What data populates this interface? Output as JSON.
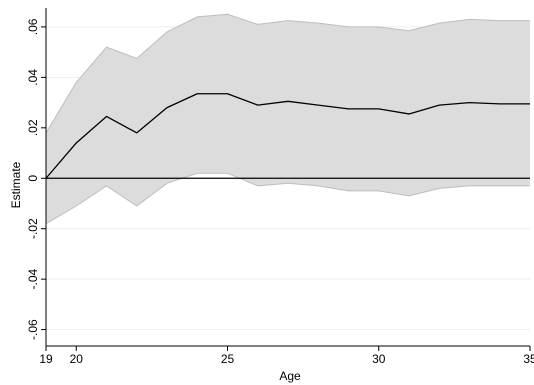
{
  "chart_data": {
    "type": "area",
    "title": "",
    "xlabel": "Age",
    "ylabel": "Estimate",
    "x": [
      19,
      20,
      21,
      22,
      23,
      24,
      25,
      26,
      27,
      28,
      29,
      30,
      31,
      32,
      33,
      34,
      35
    ],
    "series": [
      {
        "role": "estimate",
        "values": [
          0.0,
          0.014,
          0.0245,
          0.018,
          0.028,
          0.0335,
          0.0335,
          0.029,
          0.0305,
          0.029,
          0.0275,
          0.0275,
          0.0255,
          0.029,
          0.03,
          0.0295,
          0.0295
        ]
      },
      {
        "role": "ci_upper",
        "values": [
          0.018,
          0.038,
          0.052,
          0.0475,
          0.058,
          0.064,
          0.065,
          0.061,
          0.0625,
          0.0615,
          0.06,
          0.06,
          0.0585,
          0.0615,
          0.063,
          0.0625,
          0.0625
        ]
      },
      {
        "role": "ci_lower",
        "values": [
          -0.018,
          -0.011,
          -0.003,
          -0.011,
          -0.002,
          0.002,
          0.002,
          -0.003,
          -0.002,
          -0.003,
          -0.005,
          -0.005,
          -0.007,
          -0.004,
          -0.003,
          -0.003,
          -0.003
        ]
      }
    ],
    "xticks": [
      19,
      20,
      25,
      30,
      35
    ],
    "xtick_labels": [
      "19",
      "20",
      "25",
      "30",
      "35"
    ],
    "yticks": [
      -0.06,
      -0.04,
      -0.02,
      0,
      0.02,
      0.04,
      0.06
    ],
    "ytick_labels": [
      "-.06",
      "-.04",
      "-.02",
      "0",
      ".02",
      ".04",
      ".06"
    ],
    "xlim": [
      19,
      35
    ],
    "ylim": [
      -0.0665,
      0.0675
    ],
    "reference_line": 0,
    "grid": true,
    "colors": {
      "band_fill": "#dcdcdc",
      "band_edge": "#bdbdbd",
      "line": "#000000",
      "grid": "#eeeeee",
      "axis": "#000000"
    }
  }
}
